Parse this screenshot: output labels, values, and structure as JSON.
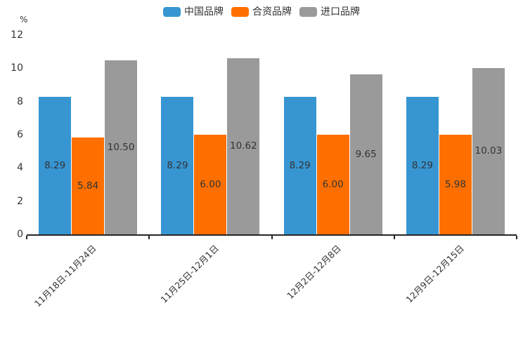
{
  "chart_data": {
    "type": "bar",
    "title": "",
    "xlabel": "",
    "ylabel": "%",
    "ylim": [
      0,
      12
    ],
    "yticks": [
      0,
      2,
      4,
      6,
      8,
      10,
      12
    ],
    "grid": false,
    "legend_position": "top",
    "categories": [
      "11月18日-11月24日",
      "11月25日-12月1日",
      "12月2日-12月8日",
      "12月9日-12月15日"
    ],
    "series": [
      {
        "name": "中国品牌",
        "color": "#3796D2",
        "values": [
          8.29,
          8.29,
          8.29,
          8.29
        ],
        "labels": [
          "8.29",
          "8.29",
          "8.29",
          "8.29"
        ]
      },
      {
        "name": "合资品牌",
        "color": "#FF6F00",
        "values": [
          5.84,
          6.0,
          6.0,
          5.98
        ],
        "labels": [
          "5.84",
          "6.00",
          "6.00",
          "5.98"
        ]
      },
      {
        "name": "进口品牌",
        "color": "#9A9A9A",
        "values": [
          10.5,
          10.62,
          9.65,
          10.03
        ],
        "labels": [
          "10.50",
          "10.62",
          "9.65",
          "10.03"
        ]
      }
    ],
    "label_color": "#333333",
    "axis_color": "#262626",
    "tick_label_color": "#333333"
  }
}
